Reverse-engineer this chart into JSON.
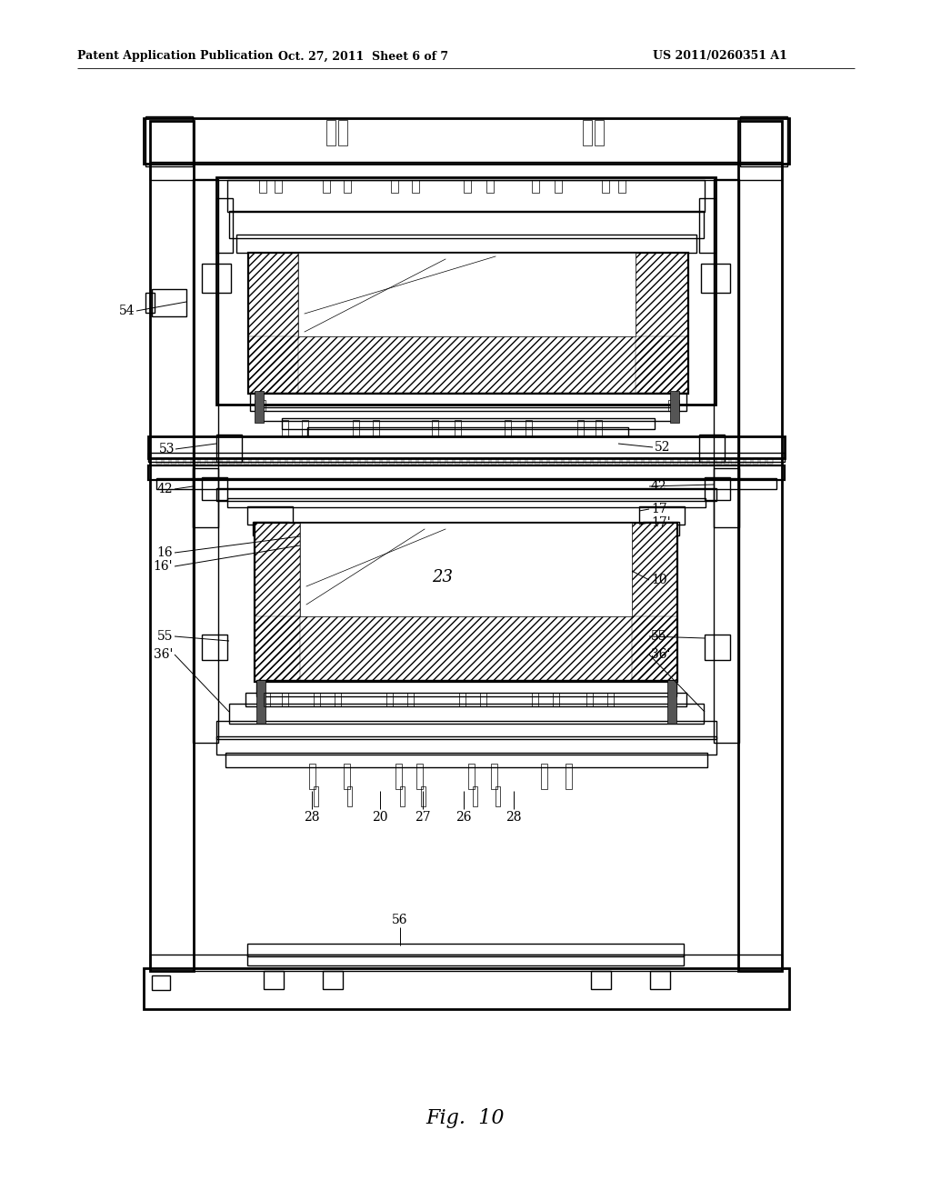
{
  "bg": "#ffffff",
  "header_left": "Patent Application Publication",
  "header_mid": "Oct. 27, 2011  Sheet 6 of 7",
  "header_right": "US 2011/0260351 A1",
  "fig_label": "Fig.  10",
  "lw_t": 0.5,
  "lw_m": 1.0,
  "lw_k": 1.6,
  "lw_f": 2.0
}
